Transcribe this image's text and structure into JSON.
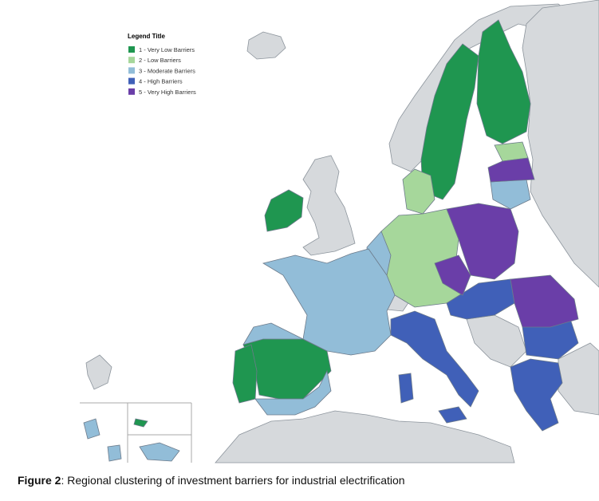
{
  "legend": {
    "title": "Legend Title",
    "items": [
      {
        "label": "1 - Very Low Barriers",
        "color": "#1f9650"
      },
      {
        "label": "2 - Low Barriers",
        "color": "#a6d79b"
      },
      {
        "label": "3 - Moderate Barriers",
        "color": "#92bdd8"
      },
      {
        "label": "4 - High Barriers",
        "color": "#4060b8"
      },
      {
        "label": "5 - Very High Barriers",
        "color": "#6a3ea8"
      }
    ]
  },
  "caption": {
    "label": "Figure 2",
    "text": ": Regional clustering of investment barriers for industrial electrification"
  }
}
